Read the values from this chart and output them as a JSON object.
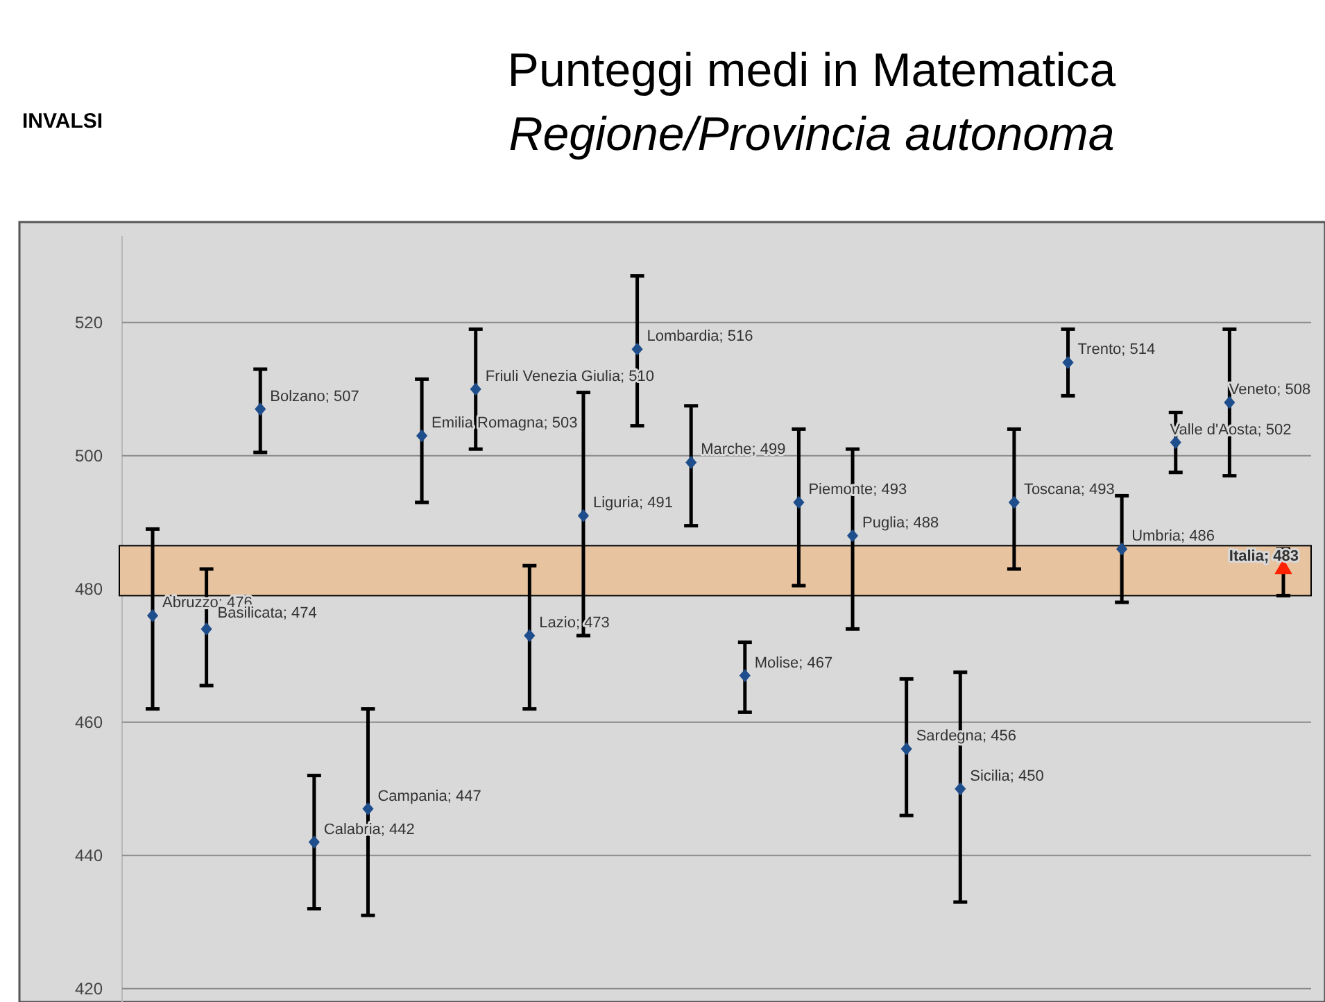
{
  "chart_data": {
    "type": "scatter",
    "title": "Punteggi medi in Matematica",
    "subtitle": "Regione/Provincia autonoma",
    "annotations": [
      "INVALSI"
    ],
    "categories": [
      null,
      null,
      null,
      null,
      null,
      null,
      null,
      null,
      null,
      null,
      null,
      null,
      null,
      null,
      null,
      null,
      null,
      null,
      null,
      null,
      null,
      null
    ],
    "series": [
      {
        "type": "scatter",
        "color": "#1f4e8c",
        "marker": "diamond",
        "values": [
          476,
          474,
          507,
          442,
          447,
          503,
          510,
          473,
          491,
          516,
          499,
          467,
          493,
          488,
          456,
          450,
          493,
          514,
          486,
          502,
          508,
          null
        ],
        "errors": [
          [
            462,
            489
          ],
          [
            465.5,
            483
          ],
          [
            500.5,
            513
          ],
          [
            432,
            452
          ],
          [
            431,
            462
          ],
          [
            493,
            511.5
          ],
          [
            501,
            519
          ],
          [
            462,
            483.5
          ],
          [
            473,
            509.5
          ],
          [
            504.5,
            527
          ],
          [
            489.5,
            507.5
          ],
          [
            461.5,
            472
          ],
          [
            480.5,
            504
          ],
          [
            474,
            501
          ],
          [
            446,
            466.5
          ],
          [
            433,
            467.5
          ],
          [
            483,
            504
          ],
          [
            509,
            519
          ],
          [
            478,
            494
          ],
          [
            497.5,
            506.5
          ],
          [
            497,
            519
          ],
          null
        ],
        "value_labels": [
          "Abruzzo; 476",
          "Basilicata; 474",
          "Bolzano; 507",
          "Calabria; 442",
          "Campania; 447",
          "Emilia Romagna; 503",
          "Friuli Venezia Giulia; 510",
          "Lazio; 473",
          "Liguria; 491",
          "Lombardia; 516",
          "Marche; 499",
          "Molise; 467",
          "Piemonte; 493",
          "Puglia; 488",
          "Sardegna; 456",
          "Sicilia; 450",
          "Toscana; 493",
          "Trento; 514",
          "Umbria; 486",
          "Valle d'Aosta; 502",
          "Veneto; 508",
          null
        ]
      },
      {
        "type": "scatter",
        "color": "#ff2200",
        "marker": "triangle",
        "values": [
          null,
          null,
          null,
          null,
          null,
          null,
          null,
          null,
          null,
          null,
          null,
          null,
          null,
          null,
          null,
          null,
          null,
          null,
          null,
          null,
          null,
          483
        ],
        "errors": [
          null,
          null,
          null,
          null,
          null,
          null,
          null,
          null,
          null,
          null,
          null,
          null,
          null,
          null,
          null,
          null,
          null,
          null,
          null,
          null,
          null,
          [
            479,
            486
          ]
        ],
        "value_labels": [
          null,
          null,
          null,
          null,
          null,
          null,
          null,
          null,
          null,
          null,
          null,
          null,
          null,
          null,
          null,
          null,
          null,
          null,
          null,
          null,
          null,
          "Italia; 483"
        ]
      }
    ],
    "ylim": [
      418,
      533
    ],
    "yticks": [
      420,
      440,
      460,
      480,
      500,
      520
    ],
    "grid": "y",
    "bands": [
      {
        "axis": "y",
        "from": 479,
        "to": 486.5,
        "color": "#e8c3a0"
      }
    ]
  }
}
